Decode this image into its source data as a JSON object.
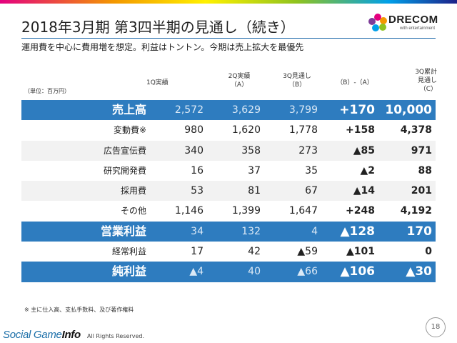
{
  "header": {
    "title": "2018年3月期 第3四半期の見通し（続き）",
    "subtitle": "運用費を中心に費用増を想定。利益はトントン。今期は売上拡大を最優先"
  },
  "logo": {
    "name": "DRECOM",
    "tagline": "with entertainment"
  },
  "table": {
    "unit": "（単位：百万円）",
    "columns": [
      [
        "1Q実績"
      ],
      [
        "2Q実績",
        "（A）"
      ],
      [
        "3Q見通し",
        "（B）"
      ],
      [
        "（B）-（A）"
      ],
      [
        "3Q累計",
        "見通し",
        "（C）"
      ]
    ],
    "rows": [
      {
        "label": "売上高",
        "values": [
          "2,572",
          "3,629",
          "3,799",
          "+170",
          "10,000"
        ],
        "highlight": true
      },
      {
        "label": "変動費※",
        "values": [
          "980",
          "1,620",
          "1,778",
          "+158",
          "4,378"
        ]
      },
      {
        "label": "広告宣伝費",
        "values": [
          "340",
          "358",
          "273",
          "▲85",
          "971"
        ]
      },
      {
        "label": "研究開発費",
        "values": [
          "16",
          "37",
          "35",
          "▲2",
          "88"
        ]
      },
      {
        "label": "採用費",
        "values": [
          "53",
          "81",
          "67",
          "▲14",
          "201"
        ]
      },
      {
        "label": "その他",
        "values": [
          "1,146",
          "1,399",
          "1,647",
          "+248",
          "4,192"
        ]
      },
      {
        "label": "営業利益",
        "values": [
          "34",
          "132",
          "4",
          "▲128",
          "170"
        ],
        "highlight": true
      },
      {
        "label": "経常利益",
        "values": [
          "17",
          "42",
          "▲59",
          "▲101",
          "0"
        ]
      },
      {
        "label": "純利益",
        "values": [
          "▲4",
          "40",
          "▲66",
          "▲106",
          "▲30"
        ],
        "highlight": true
      }
    ]
  },
  "footnote": "※ 主に仕入高、支払手数料、及び著作権料",
  "page_number": "18",
  "footer": {
    "watermark_a": "Social Game",
    "watermark_b": "Info",
    "copyright": "All Rights Reserved."
  },
  "colors": {
    "accent": "#2e7cbf",
    "rule": "#1a66a8",
    "alt_row": "#f2f2f2"
  }
}
